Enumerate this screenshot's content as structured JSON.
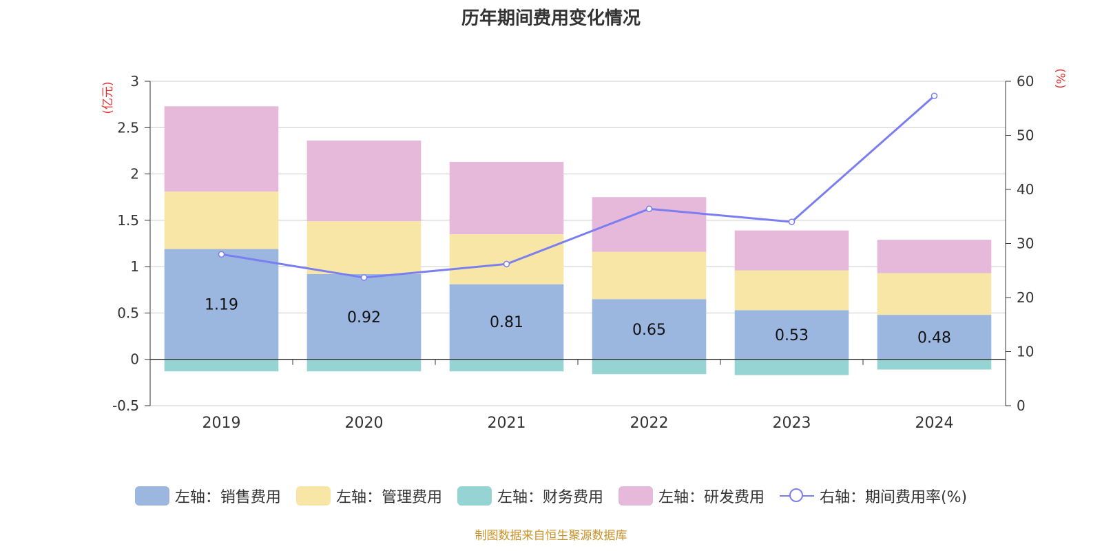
{
  "title": "历年期间费用变化情况",
  "source": "制图数据来自恒生聚源数据库",
  "legend": [
    {
      "label": "左轴：销售费用",
      "color": "#9bb7e0",
      "kind": "bar"
    },
    {
      "label": "左轴：管理费用",
      "color": "#f7e6a6",
      "kind": "bar"
    },
    {
      "label": "左轴：财务费用",
      "color": "#96d4d4",
      "kind": "bar"
    },
    {
      "label": "左轴：研发费用",
      "color": "#e6b8d9",
      "kind": "bar"
    },
    {
      "label": "右轴：期间费用率(%)",
      "color": "#7a7ef0",
      "kind": "line"
    }
  ],
  "chart_data": {
    "type": "bar",
    "stacked": true,
    "categories": [
      "2019",
      "2020",
      "2021",
      "2022",
      "2023",
      "2024"
    ],
    "left_axis": {
      "unit_label": "(亿元)",
      "ylim": [
        -0.5,
        3
      ],
      "ticks": [
        "-0.5",
        "0",
        "0.5",
        "1",
        "1.5",
        "2",
        "2.5",
        "3"
      ]
    },
    "right_axis": {
      "unit_label": "(%)",
      "ylim": [
        0,
        60
      ],
      "ticks": [
        "0",
        "10",
        "20",
        "30",
        "40",
        "50",
        "60"
      ]
    },
    "series": [
      {
        "name": "左轴：销售费用",
        "axis": "left",
        "type": "bar",
        "color": "#9bb7e0",
        "values": [
          1.19,
          0.92,
          0.81,
          0.65,
          0.53,
          0.48
        ],
        "labels": [
          "1.19",
          "0.92",
          "0.81",
          "0.65",
          "0.53",
          "0.48"
        ]
      },
      {
        "name": "左轴：管理费用",
        "axis": "left",
        "type": "bar",
        "color": "#f7e6a6",
        "values": [
          0.62,
          0.57,
          0.54,
          0.51,
          0.43,
          0.45
        ]
      },
      {
        "name": "左轴：财务费用",
        "axis": "left",
        "type": "bar",
        "color": "#96d4d4",
        "values": [
          -0.13,
          -0.13,
          -0.13,
          -0.16,
          -0.17,
          -0.11
        ]
      },
      {
        "name": "左轴：研发费用",
        "axis": "left",
        "type": "bar",
        "color": "#e6b8d9",
        "values": [
          0.92,
          0.87,
          0.78,
          0.59,
          0.43,
          0.36
        ]
      },
      {
        "name": "右轴：期间费用率(%)",
        "axis": "right",
        "type": "line",
        "color": "#7a7ef0",
        "values": [
          28.0,
          23.7,
          26.2,
          36.4,
          34.0,
          57.3
        ]
      }
    ],
    "grid": true,
    "legend_position": "bottom"
  }
}
